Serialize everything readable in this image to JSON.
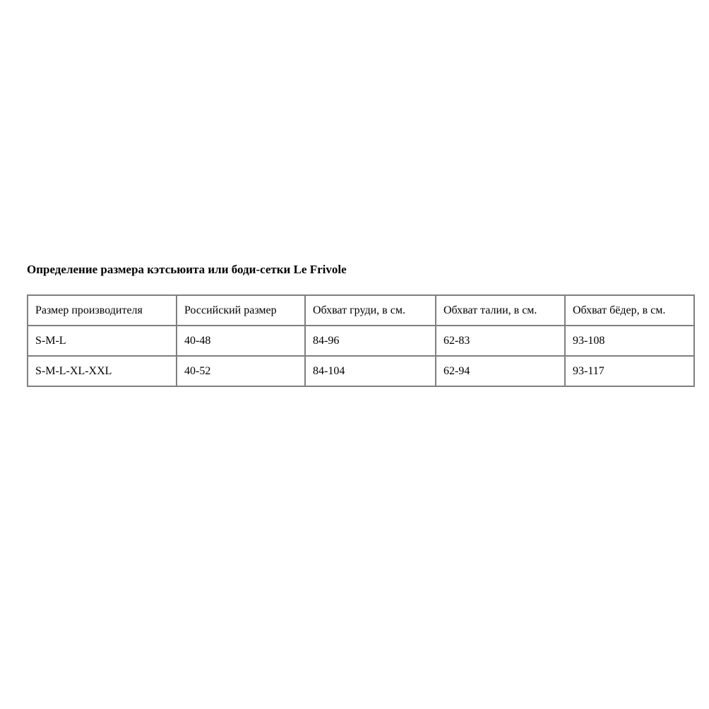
{
  "page": {
    "title": "Определение размера кэтсьюита или боди-сетки Le Frivole"
  },
  "size_table": {
    "columns": [
      "Размер производителя",
      "Российский размер",
      "Обхват груди, в см.",
      "Обхват талии, в см.",
      "Обхват бёдер, в см."
    ],
    "rows": [
      [
        "S-M-L",
        "40-48",
        "84-96",
        "62-83",
        "93-108"
      ],
      [
        "S-M-L-XL-XXL",
        "40-52",
        "84-104",
        "62-94",
        "93-117"
      ]
    ]
  },
  "colors": {
    "background": "#ffffff",
    "text": "#000000",
    "table_border": "#7f7f7f"
  }
}
